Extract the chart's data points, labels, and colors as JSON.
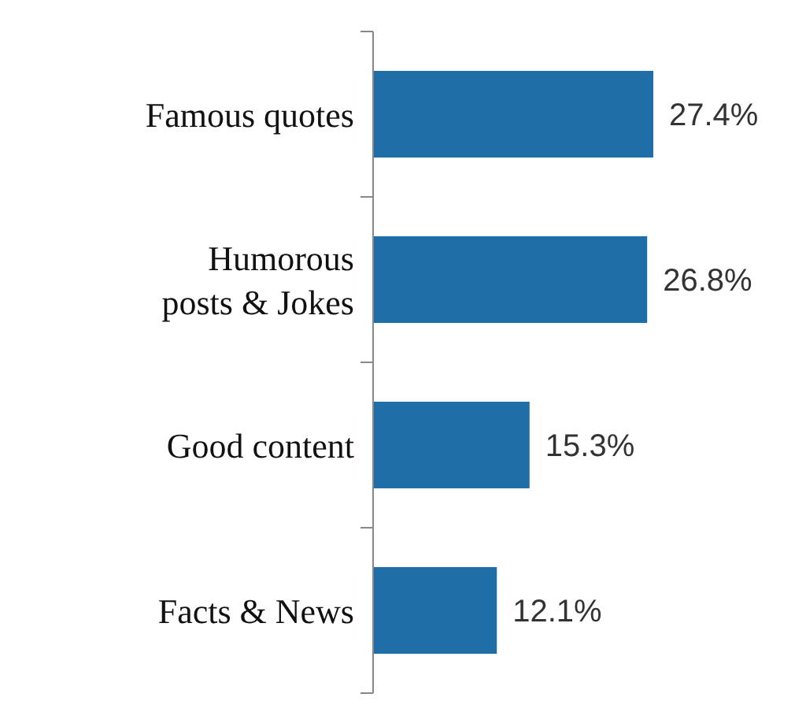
{
  "chart_data": {
    "type": "bar",
    "orientation": "horizontal",
    "categories": [
      "Famous quotes",
      "Humorous posts & Jokes",
      "Good content",
      "Facts & News"
    ],
    "values": [
      27.4,
      26.8,
      15.3,
      12.1
    ],
    "value_labels": [
      "27.4%",
      "26.8%",
      "15.3%",
      "12.1%"
    ],
    "color": "#1f6ea8"
  }
}
